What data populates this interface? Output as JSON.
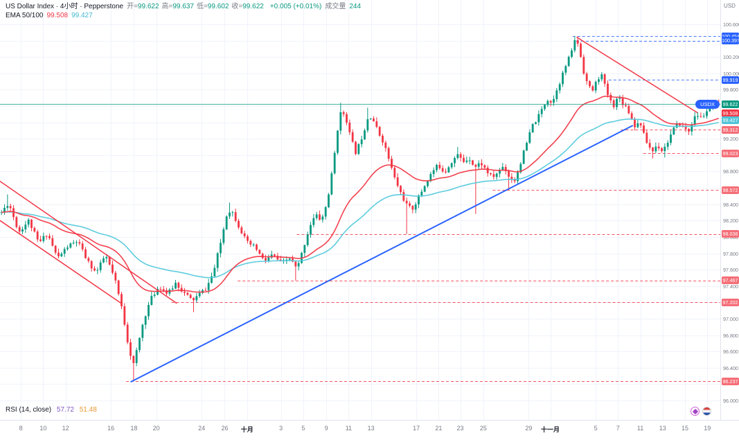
{
  "header": {
    "symbol_title": "US Dollar Index · 4小时 · Pepperstone",
    "ohlc": [
      [
        "开=",
        "99.622"
      ],
      [
        "高=",
        "99.637"
      ],
      [
        "低=",
        "99.602"
      ],
      [
        "收=",
        "99.622"
      ]
    ],
    "change": "+0.005 (+0.01%)",
    "volume_label": "成交量",
    "volume_value": "244",
    "ema_label": "EMA 50/100",
    "ema50_value": "99.508",
    "ema100_value": "99.427",
    "currency": "USD"
  },
  "footer": {
    "rsi_label": "RSI (14, close)",
    "rsi_value": "57.72",
    "rsi_ma_value": "51.48"
  },
  "colors": {
    "up": "#089981",
    "down": "#f23645",
    "ema50": "#f23645",
    "ema100": "#55c9dc",
    "blue": "#2962ff",
    "grid": "#f0f3fa",
    "axis_text": "#787b86",
    "last_price": "#089981"
  },
  "chart_data": {
    "type": "candlestick",
    "symbol": "USDX",
    "title": "US Dollar Index",
    "timeframe": "4小时",
    "provider": "Pepperstone",
    "last_price": 99.622,
    "ohlc_current": {
      "open": 99.622,
      "high": 99.637,
      "low": 99.602,
      "close": 99.622,
      "change": 0.005,
      "change_pct": 0.01,
      "volume": 244
    },
    "ema": {
      "label": "EMA 50/100",
      "ema50": 99.508,
      "ema100": 99.427
    },
    "rsi": {
      "period": 14,
      "value": 57.72,
      "ma": 51.48
    },
    "ylim": [
      95.76,
      100.9
    ],
    "grid_step": 0.2,
    "num_candles": 240,
    "noise_seed": 11,
    "y_tick_labels": [
      "100.600",
      "100.200",
      "100.000",
      "99.800",
      "99.200",
      "98.800",
      "98.600",
      "98.400",
      "98.200",
      "98.000",
      "97.800",
      "97.600",
      "97.400",
      "97.000",
      "96.800",
      "96.600",
      "96.400",
      "96.000"
    ],
    "axis_badges": [
      {
        "label": "100.454",
        "price": 100.454,
        "type": "blue"
      },
      {
        "label": "100.397",
        "price": 100.397,
        "type": "blue"
      },
      {
        "label": "99.919",
        "price": 99.919,
        "type": "blue"
      },
      {
        "label": "99.622",
        "price": 99.622,
        "type": "last"
      },
      {
        "label": "99.508",
        "price": 99.508,
        "type": "ema50"
      },
      {
        "label": "99.427",
        "price": 99.427,
        "type": "ema100"
      },
      {
        "label": "99.312",
        "price": 99.312,
        "type": "pink"
      },
      {
        "label": "99.023",
        "price": 99.023,
        "type": "pink"
      },
      {
        "label": "98.572",
        "price": 98.572,
        "type": "pink"
      },
      {
        "label": "98.036",
        "price": 98.036,
        "type": "pink"
      },
      {
        "label": "97.467",
        "price": 97.467,
        "type": "pink"
      },
      {
        "label": "97.202",
        "price": 97.202,
        "type": "pink"
      },
      {
        "label": "96.237",
        "price": 96.237,
        "type": "pink"
      }
    ],
    "x_ticks": [
      {
        "label": "8",
        "f": 0.029
      },
      {
        "label": "10",
        "f": 0.06
      },
      {
        "label": "12",
        "f": 0.091
      },
      {
        "label": "16",
        "f": 0.154
      },
      {
        "label": "18",
        "f": 0.186
      },
      {
        "label": "20",
        "f": 0.217
      },
      {
        "label": "24",
        "f": 0.28
      },
      {
        "label": "26",
        "f": 0.312
      },
      {
        "label": "十月",
        "f": 0.343,
        "bold": true
      },
      {
        "label": "3",
        "f": 0.39
      },
      {
        "label": "5",
        "f": 0.421
      },
      {
        "label": "9",
        "f": 0.453
      },
      {
        "label": "11",
        "f": 0.484
      },
      {
        "label": "13",
        "f": 0.515
      },
      {
        "label": "17",
        "f": 0.578
      },
      {
        "label": "21",
        "f": 0.609
      },
      {
        "label": "23",
        "f": 0.639
      },
      {
        "label": "25",
        "f": 0.671
      },
      {
        "label": "29",
        "f": 0.734
      },
      {
        "label": "十一月",
        "f": 0.764,
        "bold": true
      },
      {
        "label": "5",
        "f": 0.827
      },
      {
        "label": "7",
        "f": 0.858
      },
      {
        "label": "11",
        "f": 0.889
      },
      {
        "label": "13",
        "f": 0.92
      },
      {
        "label": "15",
        "f": 0.951
      },
      {
        "label": "19",
        "f": 0.982
      }
    ],
    "price_path": [
      [
        0.0,
        98.3
      ],
      [
        0.01,
        98.42
      ],
      [
        0.024,
        98.06
      ],
      [
        0.038,
        98.2
      ],
      [
        0.052,
        97.92
      ],
      [
        0.064,
        98.05
      ],
      [
        0.078,
        97.74
      ],
      [
        0.092,
        97.88
      ],
      [
        0.106,
        97.95
      ],
      [
        0.12,
        97.7
      ],
      [
        0.132,
        97.56
      ],
      [
        0.145,
        97.78
      ],
      [
        0.158,
        97.48
      ],
      [
        0.168,
        97.12
      ],
      [
        0.178,
        96.62
      ],
      [
        0.184,
        96.44
      ],
      [
        0.19,
        96.66
      ],
      [
        0.198,
        96.98
      ],
      [
        0.208,
        97.24
      ],
      [
        0.22,
        97.4
      ],
      [
        0.232,
        97.3
      ],
      [
        0.243,
        97.44
      ],
      [
        0.254,
        97.32
      ],
      [
        0.266,
        97.22
      ],
      [
        0.276,
        97.3
      ],
      [
        0.286,
        97.38
      ],
      [
        0.296,
        97.58
      ],
      [
        0.306,
        97.95
      ],
      [
        0.314,
        98.28
      ],
      [
        0.32,
        98.34
      ],
      [
        0.33,
        98.15
      ],
      [
        0.342,
        97.93
      ],
      [
        0.354,
        97.87
      ],
      [
        0.366,
        97.7
      ],
      [
        0.378,
        97.78
      ],
      [
        0.39,
        97.68
      ],
      [
        0.402,
        97.74
      ],
      [
        0.412,
        97.6
      ],
      [
        0.422,
        97.9
      ],
      [
        0.43,
        98.14
      ],
      [
        0.438,
        98.27
      ],
      [
        0.446,
        98.2
      ],
      [
        0.454,
        98.42
      ],
      [
        0.462,
        98.85
      ],
      [
        0.469,
        99.35
      ],
      [
        0.474,
        99.55
      ],
      [
        0.48,
        99.47
      ],
      [
        0.487,
        99.2
      ],
      [
        0.494,
        99.03
      ],
      [
        0.5,
        99.16
      ],
      [
        0.506,
        99.32
      ],
      [
        0.512,
        99.5
      ],
      [
        0.518,
        99.44
      ],
      [
        0.525,
        99.28
      ],
      [
        0.532,
        99.17
      ],
      [
        0.54,
        98.95
      ],
      [
        0.548,
        98.72
      ],
      [
        0.556,
        98.55
      ],
      [
        0.564,
        98.4
      ],
      [
        0.572,
        98.33
      ],
      [
        0.58,
        98.46
      ],
      [
        0.59,
        98.63
      ],
      [
        0.6,
        98.79
      ],
      [
        0.609,
        98.88
      ],
      [
        0.618,
        98.79
      ],
      [
        0.628,
        98.93
      ],
      [
        0.636,
        99.0
      ],
      [
        0.644,
        98.92
      ],
      [
        0.652,
        98.97
      ],
      [
        0.66,
        98.85
      ],
      [
        0.668,
        98.91
      ],
      [
        0.676,
        98.81
      ],
      [
        0.684,
        98.72
      ],
      [
        0.692,
        98.79
      ],
      [
        0.7,
        98.87
      ],
      [
        0.708,
        98.73
      ],
      [
        0.716,
        98.69
      ],
      [
        0.724,
        98.92
      ],
      [
        0.732,
        99.14
      ],
      [
        0.74,
        99.36
      ],
      [
        0.748,
        99.46
      ],
      [
        0.756,
        99.61
      ],
      [
        0.762,
        99.69
      ],
      [
        0.768,
        99.63
      ],
      [
        0.774,
        99.81
      ],
      [
        0.78,
        99.93
      ],
      [
        0.786,
        100.08
      ],
      [
        0.792,
        100.2
      ],
      [
        0.798,
        100.38
      ],
      [
        0.802,
        100.42
      ],
      [
        0.806,
        100.27
      ],
      [
        0.812,
        100.01
      ],
      [
        0.818,
        99.84
      ],
      [
        0.824,
        99.79
      ],
      [
        0.83,
        99.91
      ],
      [
        0.836,
        100.0
      ],
      [
        0.842,
        99.82
      ],
      [
        0.848,
        99.67
      ],
      [
        0.854,
        99.61
      ],
      [
        0.86,
        99.72
      ],
      [
        0.866,
        99.64
      ],
      [
        0.872,
        99.58
      ],
      [
        0.878,
        99.46
      ],
      [
        0.884,
        99.34
      ],
      [
        0.89,
        99.42
      ],
      [
        0.896,
        99.23
      ],
      [
        0.902,
        99.11
      ],
      [
        0.908,
        99.05
      ],
      [
        0.914,
        99.13
      ],
      [
        0.92,
        99.06
      ],
      [
        0.926,
        99.11
      ],
      [
        0.932,
        99.23
      ],
      [
        0.938,
        99.33
      ],
      [
        0.945,
        99.39
      ],
      [
        0.952,
        99.33
      ],
      [
        0.958,
        99.29
      ],
      [
        0.964,
        99.43
      ],
      [
        0.97,
        99.49
      ],
      [
        0.976,
        99.45
      ],
      [
        0.982,
        99.53
      ],
      [
        0.99,
        99.58
      ],
      [
        1.0,
        99.62
      ]
    ],
    "forced_wicks": [
      {
        "t": 0.01,
        "high": 98.52
      },
      {
        "t": 0.184,
        "low": 96.237
      },
      {
        "t": 0.268,
        "low": 97.08
      },
      {
        "t": 0.32,
        "high": 98.42
      },
      {
        "t": 0.412,
        "low": 97.467
      },
      {
        "t": 0.474,
        "high": 99.64
      },
      {
        "t": 0.512,
        "high": 99.58
      },
      {
        "t": 0.564,
        "low": 98.036
      },
      {
        "t": 0.636,
        "high": 99.1
      },
      {
        "t": 0.66,
        "low": 98.28
      },
      {
        "t": 0.708,
        "low": 98.572
      },
      {
        "t": 0.802,
        "high": 100.454
      },
      {
        "t": 0.908,
        "low": 98.96
      },
      {
        "t": 0.926,
        "low": 98.97
      }
    ],
    "levels": [
      {
        "price": 100.454,
        "from": 0.795,
        "type": "blue"
      },
      {
        "price": 100.397,
        "from": 0.8,
        "type": "blue"
      },
      {
        "price": 99.919,
        "from": 0.845,
        "type": "blue"
      },
      {
        "price": 99.312,
        "from": 0.862,
        "type": "pink"
      },
      {
        "price": 99.023,
        "from": 0.893,
        "type": "pink"
      },
      {
        "price": 98.572,
        "from": 0.684,
        "type": "pink"
      },
      {
        "price": 98.036,
        "from": 0.412,
        "type": "pink"
      },
      {
        "price": 97.467,
        "from": 0.33,
        "type": "pink"
      },
      {
        "price": 97.202,
        "from": 0.238,
        "type": "pink"
      },
      {
        "price": 96.237,
        "from": 0.175,
        "type": "pink"
      }
    ],
    "trendlines": [
      {
        "name": "support-trendline",
        "x1": 0.182,
        "p1": 96.23,
        "x2": 0.878,
        "p2": 99.36,
        "color": "#2962ff",
        "width": 2
      },
      {
        "name": "resistance-trendline",
        "x1": 0.801,
        "p1": 100.44,
        "x2": 0.968,
        "p2": 99.52,
        "color": "#f23645",
        "width": 1.5
      },
      {
        "name": "channel-upper",
        "x1": 0.0,
        "p1": 98.68,
        "x2": 0.245,
        "p2": 97.19,
        "color": "#f23645",
        "width": 1.5
      },
      {
        "name": "channel-lower",
        "x1": 0.0,
        "p1": 98.2,
        "x2": 0.168,
        "p2": 97.19,
        "color": "#f23645",
        "width": 1.5
      }
    ]
  }
}
